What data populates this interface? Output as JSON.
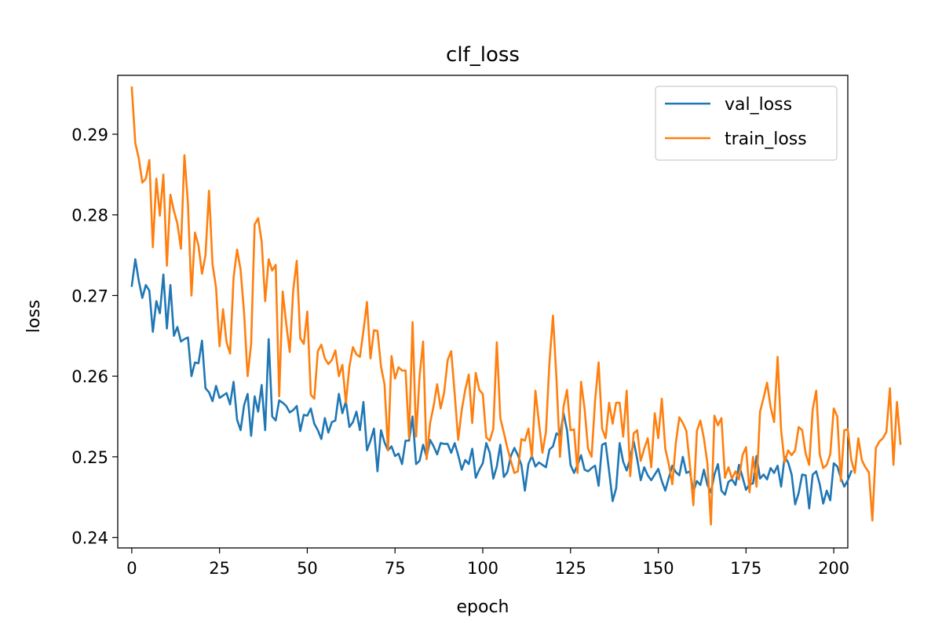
{
  "chart_data": {
    "type": "line",
    "title": "clf_loss",
    "xlabel": "epoch",
    "ylabel": "loss",
    "xlim": [
      -4,
      204
    ],
    "ylim": [
      0.2387,
      0.2973
    ],
    "xticks": [
      0,
      25,
      50,
      75,
      100,
      125,
      150,
      175,
      200
    ],
    "yticks": [
      0.24,
      0.25,
      0.26,
      0.27,
      0.28,
      0.29
    ],
    "ytick_labels": [
      "0.24",
      "0.25",
      "0.26",
      "0.27",
      "0.28",
      "0.29"
    ],
    "grid": false,
    "legend_position": "top-right",
    "series": [
      {
        "name": "val_loss",
        "color": "#1f77b4",
        "values": [
          0.2712,
          0.2745,
          0.2718,
          0.2697,
          0.2713,
          0.2706,
          0.2655,
          0.2693,
          0.2678,
          0.2726,
          0.2659,
          0.2713,
          0.265,
          0.2661,
          0.2643,
          0.2646,
          0.2648,
          0.26,
          0.2617,
          0.2616,
          0.2644,
          0.2585,
          0.258,
          0.2569,
          0.2588,
          0.2573,
          0.2576,
          0.2579,
          0.2565,
          0.2593,
          0.2546,
          0.2533,
          0.2564,
          0.2578,
          0.2526,
          0.2575,
          0.2556,
          0.2589,
          0.2533,
          0.2646,
          0.255,
          0.2545,
          0.257,
          0.2567,
          0.2563,
          0.2555,
          0.2558,
          0.2563,
          0.2532,
          0.2552,
          0.2551,
          0.256,
          0.2541,
          0.2533,
          0.2522,
          0.2548,
          0.253,
          0.2543,
          0.2545,
          0.2578,
          0.2554,
          0.2569,
          0.2537,
          0.2543,
          0.2556,
          0.2533,
          0.2568,
          0.2508,
          0.252,
          0.2535,
          0.2482,
          0.2533,
          0.2518,
          0.2508,
          0.2513,
          0.2501,
          0.2504,
          0.2491,
          0.252,
          0.252,
          0.255,
          0.2491,
          0.2495,
          0.2515,
          0.25,
          0.2521,
          0.2513,
          0.2503,
          0.2517,
          0.2516,
          0.2516,
          0.2505,
          0.2517,
          0.2502,
          0.2484,
          0.2496,
          0.2491,
          0.251,
          0.2474,
          0.2484,
          0.2492,
          0.2517,
          0.2505,
          0.2473,
          0.2488,
          0.2515,
          0.2475,
          0.2481,
          0.2501,
          0.2511,
          0.2502,
          0.249,
          0.2458,
          0.2491,
          0.2501,
          0.2488,
          0.2493,
          0.249,
          0.2487,
          0.2509,
          0.2513,
          0.2529,
          0.2526,
          0.2554,
          0.2533,
          0.249,
          0.248,
          0.249,
          0.2502,
          0.2484,
          0.2482,
          0.2486,
          0.2489,
          0.2464,
          0.2515,
          0.2517,
          0.2482,
          0.2445,
          0.2461,
          0.2517,
          0.2494,
          0.2483,
          0.2498,
          0.2519,
          0.2497,
          0.2471,
          0.2487,
          0.2477,
          0.2471,
          0.2478,
          0.2485,
          0.247,
          0.2458,
          0.2474,
          0.2489,
          0.2481,
          0.2477,
          0.25,
          0.248,
          0.2482,
          0.2457,
          0.247,
          0.2465,
          0.2484,
          0.2465,
          0.2456,
          0.2478,
          0.2491,
          0.2458,
          0.2453,
          0.2469,
          0.2472,
          0.2465,
          0.249,
          0.2475,
          0.2459,
          0.2466,
          0.2467,
          0.2501,
          0.2473,
          0.2478,
          0.2472,
          0.2486,
          0.248,
          0.2489,
          0.2463,
          0.25,
          0.2493,
          0.2478,
          0.2441,
          0.2455,
          0.2478,
          0.2477,
          0.2436,
          0.2478,
          0.2482,
          0.2466,
          0.2442,
          0.2458,
          0.2446,
          0.2492,
          0.2488,
          0.2474,
          0.2463,
          0.2471,
          0.2482
        ]
      },
      {
        "name": "train_loss",
        "color": "#ff7f0e",
        "values": [
          0.2958,
          0.2889,
          0.287,
          0.284,
          0.2845,
          0.2868,
          0.276,
          0.2845,
          0.2799,
          0.285,
          0.2737,
          0.2825,
          0.2805,
          0.2789,
          0.2758,
          0.2874,
          0.2814,
          0.27,
          0.2778,
          0.2762,
          0.2727,
          0.275,
          0.283,
          0.2739,
          0.271,
          0.2637,
          0.2683,
          0.2642,
          0.2628,
          0.2722,
          0.2757,
          0.2732,
          0.2678,
          0.26,
          0.264,
          0.2788,
          0.2796,
          0.2767,
          0.2693,
          0.2745,
          0.2731,
          0.2738,
          0.2575,
          0.2705,
          0.2665,
          0.263,
          0.2707,
          0.2743,
          0.2647,
          0.264,
          0.268,
          0.2577,
          0.2572,
          0.2631,
          0.2639,
          0.2622,
          0.2615,
          0.262,
          0.2632,
          0.26,
          0.2614,
          0.2567,
          0.2612,
          0.2636,
          0.2627,
          0.2624,
          0.2656,
          0.2692,
          0.2622,
          0.2657,
          0.2656,
          0.2612,
          0.259,
          0.2508,
          0.2625,
          0.2597,
          0.2611,
          0.2607,
          0.2607,
          0.2523,
          0.2667,
          0.2525,
          0.26,
          0.2643,
          0.2497,
          0.2542,
          0.2563,
          0.259,
          0.256,
          0.258,
          0.262,
          0.2631,
          0.2578,
          0.2521,
          0.2558,
          0.2583,
          0.2602,
          0.2542,
          0.2604,
          0.2583,
          0.2578,
          0.2524,
          0.252,
          0.2535,
          0.2642,
          0.2548,
          0.253,
          0.2511,
          0.2495,
          0.248,
          0.2482,
          0.2522,
          0.252,
          0.2535,
          0.25,
          0.2582,
          0.2542,
          0.2505,
          0.2531,
          0.2617,
          0.2675,
          0.2597,
          0.25,
          0.2562,
          0.2583,
          0.2533,
          0.2534,
          0.248,
          0.2593,
          0.256,
          0.251,
          0.25,
          0.257,
          0.2617,
          0.2535,
          0.2523,
          0.2567,
          0.2541,
          0.2567,
          0.2567,
          0.2525,
          0.2582,
          0.2476,
          0.2529,
          0.2533,
          0.2495,
          0.251,
          0.2523,
          0.2487,
          0.2554,
          0.2523,
          0.2572,
          0.251,
          0.2491,
          0.2466,
          0.2517,
          0.2549,
          0.2542,
          0.2532,
          0.249,
          0.244,
          0.2532,
          0.2545,
          0.2523,
          0.2492,
          0.2416,
          0.2551,
          0.2539,
          0.2548,
          0.2474,
          0.2487,
          0.2473,
          0.2482,
          0.2472,
          0.2502,
          0.2512,
          0.2456,
          0.25,
          0.2463,
          0.2556,
          0.2573,
          0.2592,
          0.2562,
          0.2543,
          0.2624,
          0.2533,
          0.2493,
          0.2508,
          0.2502,
          0.2508,
          0.2537,
          0.2533,
          0.2504,
          0.249,
          0.2559,
          0.2582,
          0.2503,
          0.2486,
          0.249,
          0.2503,
          0.256,
          0.255,
          0.247,
          0.2533,
          0.2534,
          0.2496,
          0.248,
          0.2523,
          0.2496,
          0.2487,
          0.2481,
          0.2421,
          0.2511,
          0.2519,
          0.2523,
          0.2531,
          0.2585,
          0.249,
          0.2568,
          0.2516
        ]
      }
    ]
  }
}
